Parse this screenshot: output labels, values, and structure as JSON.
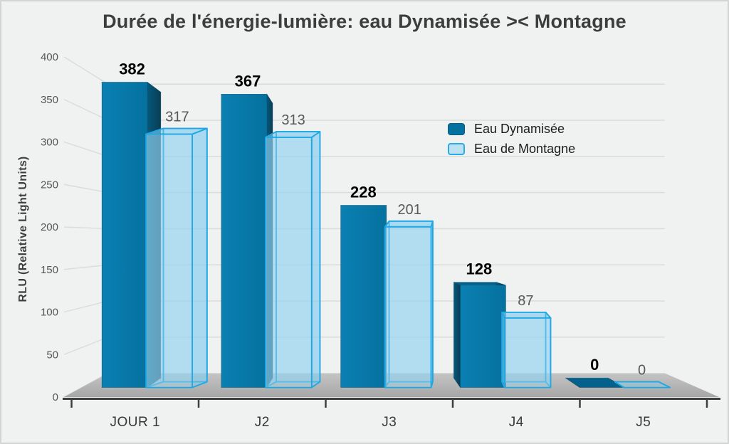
{
  "chart_data": {
    "type": "bar",
    "projection": "3d-perspective",
    "title": "Durée de l'énergie-lumière: eau Dynamisée >< Montagne",
    "ylabel": "RLU (Relative Light Units)",
    "xlabel": "",
    "categories": [
      "JOUR 1",
      "J2",
      "J3",
      "J4",
      "J5"
    ],
    "series": [
      {
        "name": "Eau Dynamisée",
        "values": [
          382,
          367,
          228,
          128,
          0
        ],
        "style": "solid",
        "color": "#05719f",
        "color_light": "#0a80b2",
        "side_color": "#05587c",
        "side_color_dark": "#093d55",
        "top_color": "#04618b",
        "swatch_border": "#0b5a7d",
        "label_color": "#000000",
        "label_bold": true
      },
      {
        "name": "Eau de Montagne",
        "values": [
          317,
          313,
          201,
          87,
          0
        ],
        "style": "translucent-glass",
        "color": "#bce1f3",
        "fill_rgba": "rgba(130,205,241,0.40)",
        "front_rgba": "rgba(155,214,242,0.44)",
        "edge_color": "#1fa8e4",
        "swatch_border": "#29abe6",
        "label_color": "#595959",
        "label_bold": false
      }
    ],
    "ylim": [
      0,
      400
    ],
    "yticks": [
      0,
      50,
      100,
      150,
      200,
      250,
      300,
      350,
      400
    ],
    "grid": true,
    "legend_position": "upper-right-inside"
  },
  "palette": {
    "background": "#f0f1f1",
    "frame_border": "#d3d5d4",
    "gridline": "#dadcdb",
    "axis_line": "#3e3e3e",
    "floor_back": "#c3c4c3",
    "floor_front": "#a6a7a6",
    "tick_label": "#565656",
    "category_label": "#383838",
    "title_color": "#3d3d3d"
  }
}
